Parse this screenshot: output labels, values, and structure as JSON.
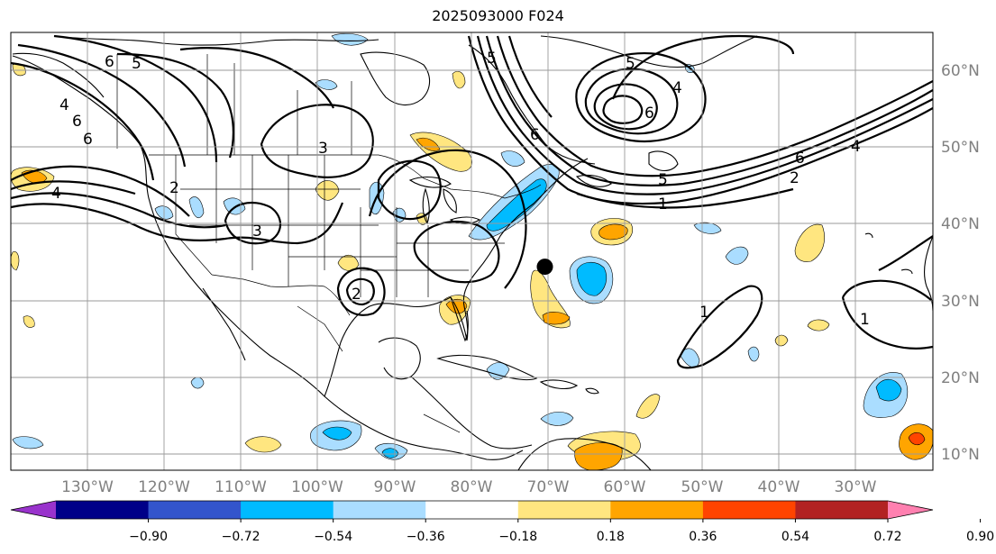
{
  "title": "2025093000 F024",
  "map": {
    "lon_range": [
      -140,
      -20
    ],
    "lat_range": [
      8,
      65
    ],
    "lon_ticks": [
      "130°W",
      "120°W",
      "110°W",
      "100°W",
      "90°W",
      "80°W",
      "70°W",
      "60°W",
      "50°W",
      "40°W",
      "30°W"
    ],
    "lat_ticks": [
      "60°N",
      "50°N",
      "40°N",
      "30°N",
      "20°N",
      "10°N"
    ],
    "contour_labels": [
      "6",
      "5",
      "6",
      "4",
      "3",
      "3",
      "2",
      "2",
      "6",
      "5",
      "6",
      "4",
      "6",
      "2",
      "4",
      "1",
      "1",
      "1",
      "5",
      "5",
      "4",
      "6"
    ],
    "marker": {
      "lon": -70.5,
      "lat": 34.5,
      "label_icon": "storm-center-dot"
    }
  },
  "colorbar": {
    "colors": [
      "#9933cc",
      "#000088",
      "#3355cc",
      "#00bbff",
      "#aaddff",
      "#ffffff",
      "#ffe680",
      "#ffa500",
      "#ff4400",
      "#b22222",
      "#ff80b0"
    ],
    "labels": [
      "−0.90",
      "−0.72",
      "−0.54",
      "−0.36",
      "−0.18",
      "0.18",
      "0.36",
      "0.54",
      "0.72",
      "0.90"
    ]
  }
}
